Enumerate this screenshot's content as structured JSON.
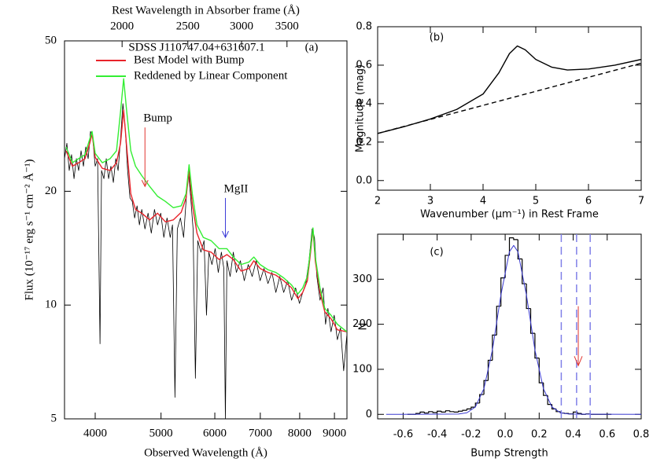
{
  "chart_data": [
    {
      "type": "line",
      "title": "SDSS J110747.04+631607.1",
      "panel_label": "(a)",
      "xlabel": "Observed Wavelength (Å)",
      "x2label": "Rest Wavelength in Absorber frame (Å)",
      "ylabel": "Flux (10⁻¹⁷ erg s⁻¹ cm⁻² Å⁻¹)",
      "xscale": "log",
      "yscale": "log",
      "xlim": [
        3605,
        9390
      ],
      "xticks": [
        4000,
        5000,
        6000,
        7000,
        8000,
        9000
      ],
      "x2lim": [
        1645,
        4290
      ],
      "x2ticks": [
        2000,
        2500,
        3000,
        3500
      ],
      "ylim": [
        5,
        50
      ],
      "yticks": [
        5,
        10,
        20,
        50
      ],
      "series": [
        {
          "color": "#000000",
          "x": [
            3605,
            3634,
            3663,
            3692,
            3723,
            3753,
            3782,
            3813,
            3844,
            3874,
            3906,
            3937,
            3968,
            4000,
            4033,
            4066,
            4087,
            4120,
            4153,
            4186,
            4219,
            4254,
            4289,
            4323,
            4359,
            4394,
            4428,
            4465,
            4501,
            4536,
            4572,
            4610,
            4647,
            4684,
            4735,
            4785,
            4838,
            4890,
            4942,
            4995,
            5048,
            5103,
            5158,
            5198,
            5242,
            5284,
            5340,
            5398,
            5442,
            5485,
            5530,
            5574,
            5618,
            5663,
            5724,
            5785,
            5833,
            5880,
            5942,
            6007,
            6071,
            6135,
            6186,
            6219,
            6251,
            6320,
            6388,
            6455,
            6543,
            6630,
            6720,
            6810,
            6903,
            6995,
            7089,
            7184,
            7282,
            7379,
            7478,
            7578,
            7681,
            7783,
            7890,
            7994,
            8082,
            8168,
            8257,
            8345,
            8411,
            8480,
            8571,
            8661,
            8733,
            8803,
            8896,
            8993,
            9089,
            9188,
            9286,
            9385
          ],
          "values": [
            24.4,
            26.8,
            22.7,
            25.0,
            21.6,
            24.4,
            22.7,
            25.6,
            23.3,
            26.2,
            24.4,
            28.8,
            27.5,
            23.3,
            24.4,
            7.9,
            22.7,
            21.6,
            24.4,
            21.6,
            23.3,
            21.1,
            24.4,
            22.7,
            27.5,
            34.1,
            29.5,
            22.7,
            19.2,
            18.8,
            17.0,
            18.3,
            16.3,
            17.9,
            15.9,
            17.5,
            15.5,
            17.9,
            16.3,
            17.5,
            15.1,
            17.0,
            15.1,
            16.3,
            5.7,
            15.9,
            17.0,
            15.1,
            18.8,
            22.7,
            19.2,
            15.9,
            6.4,
            14.8,
            13.8,
            14.8,
            9.4,
            13.8,
            12.8,
            14.1,
            12.2,
            13.8,
            12.5,
            5.0,
            13.1,
            11.9,
            13.8,
            12.2,
            13.1,
            11.6,
            12.8,
            11.9,
            13.1,
            11.6,
            12.5,
            11.4,
            12.2,
            10.8,
            11.9,
            10.8,
            11.6,
            10.3,
            11.1,
            10.1,
            10.8,
            11.4,
            13.1,
            15.9,
            15.1,
            11.9,
            10.3,
            11.1,
            8.9,
            9.8,
            8.5,
            9.4,
            8.1,
            8.7,
            6.7,
            8.3
          ]
        },
        {
          "name": "Best Model with Bump",
          "color": "#e8232a",
          "x": [
            3624,
            3703,
            3782,
            3864,
            3927,
            3958,
            4000,
            4098,
            4208,
            4300,
            4359,
            4405,
            4451,
            4513,
            4586,
            4684,
            4811,
            4942,
            5075,
            5212,
            5354,
            5442,
            5499,
            5559,
            5648,
            5770,
            5926,
            6087,
            6251,
            6388,
            6560,
            6738,
            6848,
            6995,
            7184,
            7379,
            7578,
            7783,
            7952,
            8082,
            8211,
            8301,
            8368,
            8434,
            8571,
            8710,
            8896,
            9089,
            9385
          ],
          "values": [
            25.6,
            23.3,
            23.8,
            24.4,
            26.8,
            28.4,
            24.6,
            23.0,
            22.7,
            23.8,
            26.8,
            32.8,
            26.2,
            19.7,
            17.9,
            17.5,
            16.8,
            17.5,
            16.6,
            16.8,
            17.6,
            19.2,
            22.7,
            18.5,
            15.5,
            14.0,
            13.8,
            13.2,
            13.6,
            13.2,
            12.3,
            12.5,
            13.1,
            12.5,
            12.2,
            12.0,
            11.6,
            11.1,
            10.4,
            10.8,
            11.6,
            13.8,
            15.9,
            13.1,
            10.8,
            9.6,
            9.2,
            8.6,
            8.5
          ]
        },
        {
          "name": "Reddened by Linear Component",
          "color": "#33ee33",
          "x": [
            3624,
            3703,
            3782,
            3864,
            3927,
            3958,
            4000,
            4098,
            4208,
            4300,
            4359,
            4405,
            4451,
            4513,
            4586,
            4684,
            4811,
            4942,
            5075,
            5212,
            5354,
            5442,
            5499,
            5559,
            5648,
            5770,
            5926,
            6087,
            6251,
            6388,
            6560,
            6738,
            6848,
            6995,
            7184,
            7379,
            7578,
            7783,
            7952,
            8082,
            8211,
            8301,
            8368,
            8434,
            8571,
            8710,
            8896,
            9089,
            9385
          ],
          "values": [
            26.2,
            23.8,
            24.4,
            25.0,
            27.5,
            28.8,
            25.2,
            23.8,
            24.4,
            25.6,
            32.5,
            39.7,
            32.5,
            25.6,
            23.3,
            22.0,
            20.6,
            19.4,
            18.8,
            18.1,
            18.3,
            19.7,
            23.5,
            19.7,
            16.3,
            15.1,
            14.8,
            14.1,
            14.1,
            13.4,
            12.8,
            13.0,
            13.4,
            12.8,
            12.4,
            12.2,
            11.8,
            11.3,
            10.7,
            11.1,
            11.9,
            14.1,
            16.0,
            13.4,
            11.1,
            9.8,
            9.4,
            8.9,
            8.5
          ]
        }
      ],
      "annotations": [
        {
          "text": "Bump",
          "x": 4735,
          "y": 29.5,
          "y_end": 20.6,
          "color": "#e0342f"
        },
        {
          "text": "MgII",
          "x": 6219,
          "y": 19.2,
          "y_end": 15.1,
          "color": "#3a3ad8"
        }
      ]
    },
    {
      "type": "line",
      "panel_label": "(b)",
      "xlabel": "Wavenumber (μm⁻¹) in Rest Frame",
      "ylabel": "Magnitude (mag)",
      "xlim": [
        2,
        7
      ],
      "xticks": [
        2,
        3,
        4,
        5,
        6,
        7
      ],
      "ylim": [
        -0.05,
        0.8
      ],
      "yticks": [
        {
          "value": 0,
          "label": "0.0"
        },
        0.2,
        0.4,
        0.6,
        0.8
      ],
      "series": [
        {
          "color": "#000000",
          "x": [
            2,
            2.5,
            3,
            3.5,
            4,
            4.3,
            4.5,
            4.65,
            4.8,
            5,
            5.3,
            5.6,
            6,
            6.5,
            7
          ],
          "values": [
            0.245,
            0.28,
            0.32,
            0.37,
            0.45,
            0.56,
            0.66,
            0.7,
            0.68,
            0.63,
            0.59,
            0.575,
            0.58,
            0.6,
            0.63
          ]
        },
        {
          "color": "#000000",
          "linestyle": "dashed",
          "x": [
            2,
            7
          ],
          "values": [
            0.245,
            0.61
          ]
        }
      ]
    },
    {
      "type": "histogram",
      "panel_label": "(c)",
      "xlabel": "Bump Strength",
      "ylabel": "N",
      "xlim": [
        -0.75,
        0.8
      ],
      "xticks": [
        -0.6,
        -0.4,
        -0.2,
        {
          "value": 0,
          "label": "0.0"
        },
        0.2,
        0.4,
        0.6,
        0.8
      ],
      "ylim": [
        -10,
        400
      ],
      "yticks": [
        0,
        100,
        200,
        300
      ],
      "color": "#000000",
      "bins": [
        -0.575,
        -0.55,
        -0.525,
        -0.5,
        -0.475,
        -0.45,
        -0.425,
        -0.4,
        -0.375,
        -0.35,
        -0.325,
        -0.3,
        -0.275,
        -0.25,
        -0.225,
        -0.2,
        -0.175,
        -0.15,
        -0.125,
        -0.1,
        -0.075,
        -0.05,
        -0.025,
        0,
        0.025,
        0.05,
        0.075,
        0.1,
        0.125,
        0.15,
        0.175,
        0.2,
        0.225,
        0.25,
        0.275,
        0.3,
        0.325,
        0.35,
        0.375,
        0.4,
        0.425,
        0.45,
        0.475,
        0.5,
        0.525,
        0.55,
        0.575,
        0.6,
        0.625
      ],
      "counts": [
        0,
        0,
        2,
        5,
        3,
        6,
        4,
        7,
        5,
        8,
        6,
        5,
        7,
        9,
        12,
        16,
        25,
        44,
        75,
        120,
        176,
        240,
        303,
        353,
        392,
        388,
        345,
        290,
        235,
        180,
        125,
        70,
        42,
        22,
        12,
        6,
        3,
        2,
        1,
        5,
        2,
        0,
        1,
        0,
        0,
        0,
        0,
        0
      ],
      "fit": {
        "color": "#3a3ad0",
        "x": [
          -0.7,
          -0.275,
          -0.225,
          -0.175,
          -0.125,
          -0.075,
          -0.025,
          0.025,
          0.05,
          0.075,
          0.125,
          0.175,
          0.225,
          0.275,
          0.325,
          0.375,
          0.8
        ],
        "values": [
          0,
          0.6,
          3.5,
          16.5,
          57,
          143,
          265,
          361,
          375,
          361,
          265,
          143,
          57,
          16.5,
          3.5,
          0.6,
          0
        ]
      },
      "vlines": [
        0.33,
        0.42,
        0.5
      ],
      "vline_color": "#8080e8",
      "arrow": {
        "x": 0.43,
        "y": 240,
        "y_end": 108,
        "color": "#e0342f"
      }
    }
  ]
}
